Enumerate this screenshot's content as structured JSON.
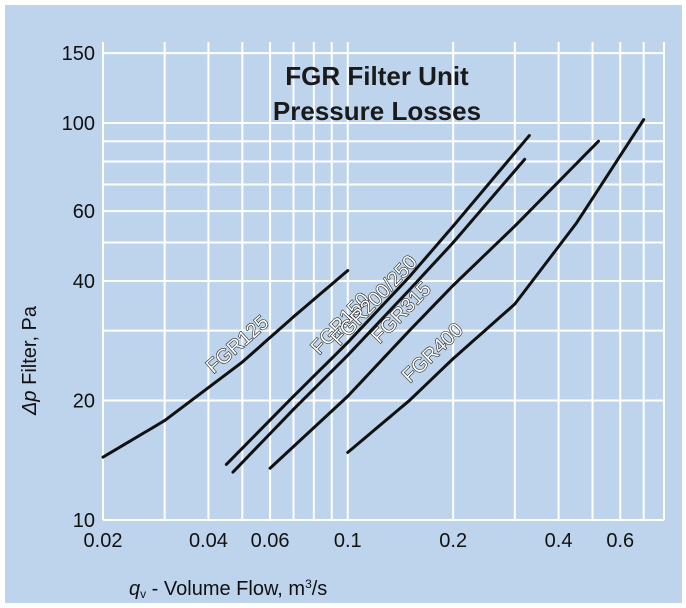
{
  "chart_data": {
    "type": "line",
    "title_lines": [
      "FGR Filter Unit",
      "Pressure Losses"
    ],
    "xlabel": {
      "symbol": "q",
      "subscript": "v",
      "text": " - Volume Flow, m",
      "superscript": "3",
      "unit_tail": "/s"
    },
    "ylabel": {
      "symbol": "Δp",
      "text": " Filter, Pa"
    },
    "x_scale": "log",
    "y_scale": "log",
    "xlim": [
      0.02,
      0.8
    ],
    "ylim": [
      10,
      160
    ],
    "x_ticks": [
      {
        "value": 0.02,
        "label": "0.02"
      },
      {
        "value": 0.04,
        "label": "0.04"
      },
      {
        "value": 0.06,
        "label": "0.06"
      },
      {
        "value": 0.1,
        "label": "0.1"
      },
      {
        "value": 0.2,
        "label": "0.2"
      },
      {
        "value": 0.4,
        "label": "0.4"
      },
      {
        "value": 0.6,
        "label": "0.6"
      }
    ],
    "x_gridlines": [
      0.02,
      0.03,
      0.04,
      0.05,
      0.06,
      0.07,
      0.08,
      0.09,
      0.1,
      0.2,
      0.3,
      0.4,
      0.5,
      0.6,
      0.7,
      0.8
    ],
    "y_ticks": [
      {
        "value": 10,
        "label": "10"
      },
      {
        "value": 20,
        "label": "20"
      },
      {
        "value": 40,
        "label": "40"
      },
      {
        "value": 60,
        "label": "60"
      },
      {
        "value": 100,
        "label": "100"
      },
      {
        "value": 150,
        "label": "150"
      }
    ],
    "y_gridlines": [
      10,
      20,
      30,
      40,
      50,
      60,
      70,
      80,
      90,
      100,
      150
    ],
    "grid": true,
    "colors": {
      "background": "#bdd4ec",
      "grid": "#ffffff",
      "line": "#111111"
    },
    "series": [
      {
        "name": "FGR125",
        "points": [
          [
            0.02,
            14.4
          ],
          [
            0.03,
            17.8
          ],
          [
            0.05,
            25.0
          ],
          [
            0.07,
            32.5
          ],
          [
            0.1,
            42.5
          ]
        ]
      },
      {
        "name": "FGR150",
        "points": [
          [
            0.045,
            13.8
          ],
          [
            0.07,
            20.5
          ],
          [
            0.1,
            28.0
          ],
          [
            0.15,
            41.0
          ],
          [
            0.2,
            55.0
          ],
          [
            0.33,
            93.0
          ]
        ]
      },
      {
        "name": "FGR200/250",
        "points": [
          [
            0.047,
            13.2
          ],
          [
            0.07,
            19.0
          ],
          [
            0.1,
            26.0
          ],
          [
            0.15,
            38.0
          ],
          [
            0.2,
            50.0
          ],
          [
            0.32,
            81.0
          ]
        ]
      },
      {
        "name": "FGR315",
        "points": [
          [
            0.06,
            13.5
          ],
          [
            0.1,
            20.5
          ],
          [
            0.15,
            30.0
          ],
          [
            0.2,
            39.0
          ],
          [
            0.3,
            55.0
          ],
          [
            0.52,
            90.0
          ]
        ]
      },
      {
        "name": "FGR400",
        "points": [
          [
            0.1,
            14.8
          ],
          [
            0.15,
            20.0
          ],
          [
            0.2,
            25.5
          ],
          [
            0.3,
            35.0
          ],
          [
            0.45,
            56.0
          ],
          [
            0.7,
            102.0
          ]
        ]
      }
    ]
  }
}
